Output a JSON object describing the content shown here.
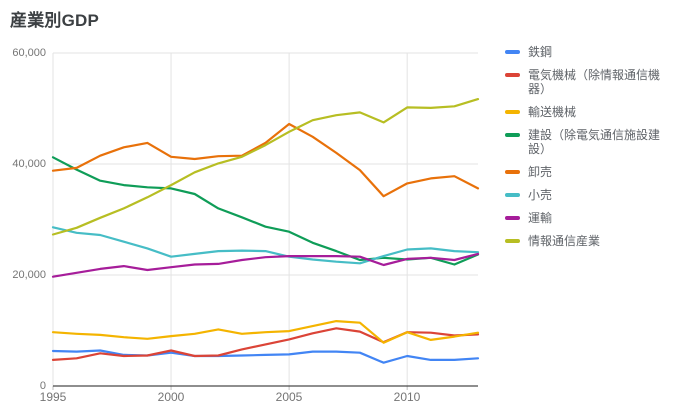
{
  "title": "産業別GDP",
  "chart_data": {
    "type": "line",
    "title": "産業別GDP",
    "xlabel": "",
    "ylabel": "",
    "x": [
      1995,
      1996,
      1997,
      1998,
      1999,
      2000,
      2001,
      2002,
      2003,
      2004,
      2005,
      2006,
      2007,
      2008,
      2009,
      2010,
      2011,
      2012,
      2013
    ],
    "series": [
      {
        "name": "鉄鋼",
        "color": "#4285F4",
        "values": [
          6300,
          6200,
          6400,
          5600,
          5500,
          6000,
          5400,
          5400,
          5500,
          5600,
          5700,
          6200,
          6200,
          6000,
          4200,
          5400,
          4700,
          4700,
          5000
        ]
      },
      {
        "name": "電気機械（除情報通信機器）",
        "color": "#DB4437",
        "values": [
          4700,
          5000,
          5900,
          5400,
          5500,
          6400,
          5400,
          5500,
          6600,
          7500,
          8400,
          9500,
          10400,
          9800,
          7900,
          9700,
          9600,
          9100,
          9300
        ]
      },
      {
        "name": "輸送機械",
        "color": "#F4B400",
        "values": [
          9700,
          9400,
          9200,
          8800,
          8500,
          9000,
          9400,
          10200,
          9400,
          9700,
          9900,
          10800,
          11700,
          11400,
          7800,
          9700,
          8300,
          8900,
          9600
        ]
      },
      {
        "name": "建設（除電気通信施設建設）",
        "color": "#0F9D58",
        "values": [
          41200,
          39000,
          37000,
          36200,
          35800,
          35600,
          34600,
          32000,
          30400,
          28700,
          27800,
          25800,
          24300,
          22700,
          23100,
          22800,
          23100,
          21900,
          23700
        ]
      },
      {
        "name": "卸売",
        "color": "#E8710A",
        "values": [
          38800,
          39300,
          41500,
          43000,
          43800,
          41300,
          40900,
          41400,
          41500,
          43800,
          47200,
          44900,
          42000,
          38900,
          34200,
          36500,
          37400,
          37800,
          35600
        ]
      },
      {
        "name": "小売",
        "color": "#46BDC6",
        "values": [
          28600,
          27600,
          27200,
          26000,
          24800,
          23300,
          23800,
          24300,
          24400,
          24300,
          23300,
          22800,
          22400,
          22100,
          23400,
          24600,
          24800,
          24300,
          24100
        ]
      },
      {
        "name": "運輸",
        "color": "#A61D9A",
        "values": [
          19700,
          20400,
          21100,
          21600,
          20900,
          21400,
          21900,
          22000,
          22700,
          23200,
          23400,
          23400,
          23400,
          23300,
          21800,
          22900,
          23100,
          22700,
          23800
        ]
      },
      {
        "name": "情報通信産業",
        "color": "#B7BE23",
        "values": [
          27300,
          28500,
          30300,
          32000,
          34000,
          36200,
          38500,
          40100,
          41300,
          43400,
          45800,
          47900,
          48800,
          49300,
          47500,
          50200,
          50100,
          50400,
          51700
        ]
      }
    ],
    "x_ticks": [
      "1995",
      "2000",
      "2005",
      "2010"
    ],
    "y_ticks": [
      "0",
      "20,000",
      "40,000",
      "60,000"
    ],
    "xlim": [
      1995,
      2013
    ],
    "ylim": [
      0,
      60000
    ],
    "grid": true,
    "legend_position": "right",
    "colors": {
      "gridline": "#e3e3e3",
      "baseline": "#4a4a4a",
      "tick_mark": "#bdbdbd",
      "axis_label": "#757575",
      "legend_text": "#5f6368",
      "title_text": "#3c4043",
      "background": "#ffffff"
    }
  }
}
